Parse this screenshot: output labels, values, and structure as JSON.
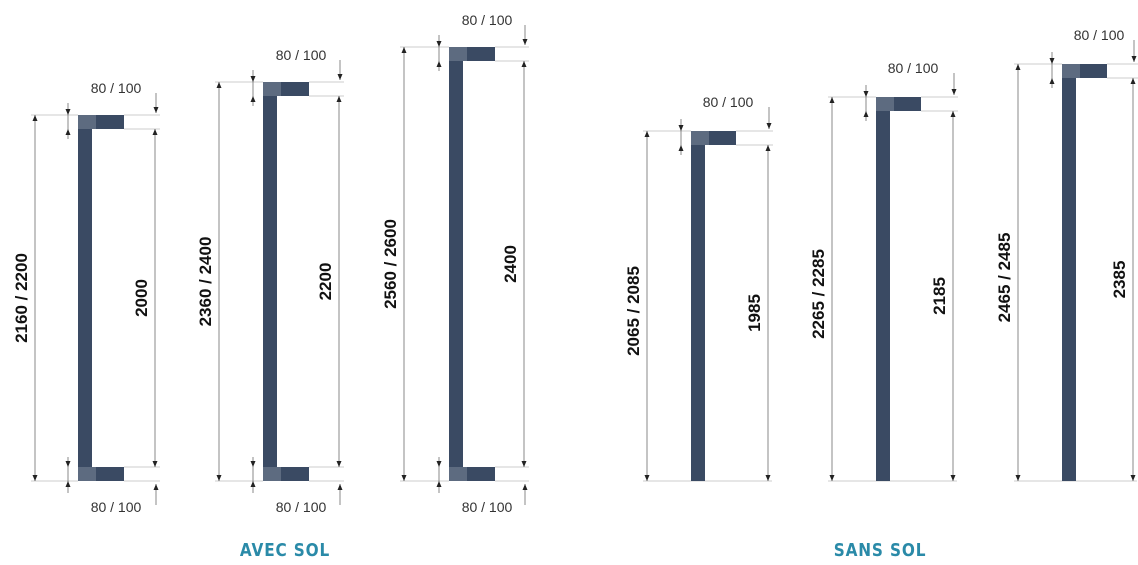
{
  "colors": {
    "profile": "#3a4a63",
    "profile_light": "#5d6b80",
    "section_label": "#2a8aa8"
  },
  "sections": {
    "avec_sol": "AVEC SOL",
    "sans_sol": "SANS SOL"
  },
  "avec_sol": [
    {
      "total": "2160 / 2200",
      "inner": "2000",
      "top_width": "80 / 100",
      "bottom_width": "80 / 100"
    },
    {
      "total": "2360 / 2400",
      "inner": "2200",
      "top_width": "80 / 100",
      "bottom_width": "80 / 100"
    },
    {
      "total": "2560 / 2600",
      "inner": "2400",
      "top_width": "80 / 100",
      "bottom_width": "80 / 100"
    }
  ],
  "sans_sol": [
    {
      "total": "2065 / 2085",
      "inner": "1985",
      "top_width": "80 / 100"
    },
    {
      "total": "2265 / 2285",
      "inner": "2185",
      "top_width": "80 / 100"
    },
    {
      "total": "2465 / 2485",
      "inner": "2385",
      "top_width": "80 / 100"
    }
  ]
}
